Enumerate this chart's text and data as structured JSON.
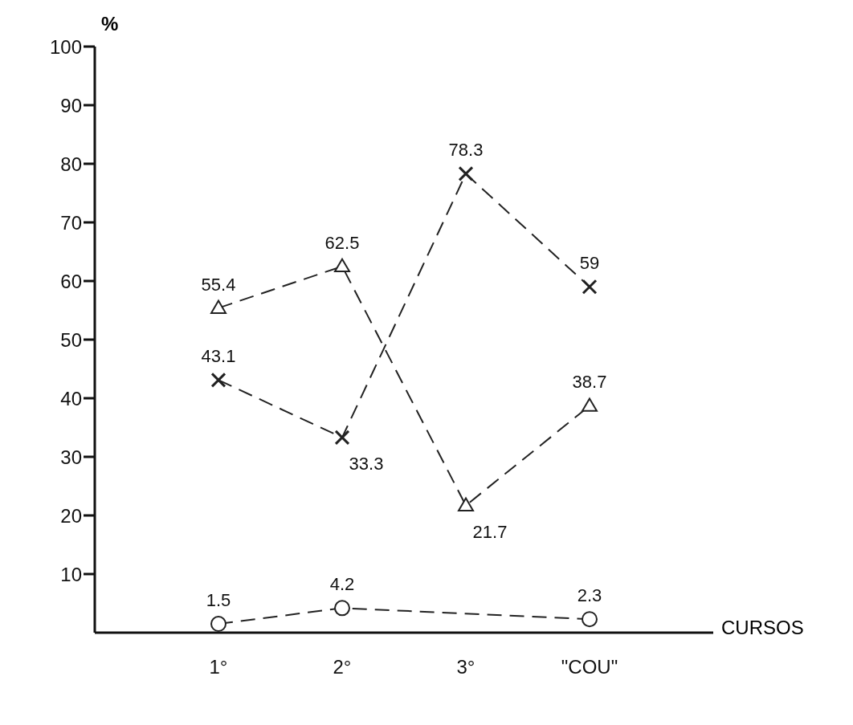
{
  "chart_data": {
    "type": "line",
    "categories": [
      "1°",
      "2°",
      "3°",
      "\"COU\""
    ],
    "series": [
      {
        "color": "#222222",
        "marker": "triangle",
        "values": [
          55.4,
          62.5,
          21.7,
          38.7
        ]
      },
      {
        "color": "#222222",
        "marker": "cross",
        "values": [
          43.1,
          33.3,
          78.3,
          59
        ]
      },
      {
        "color": "#222222",
        "marker": "circle",
        "values": [
          1.5,
          4.2,
          null,
          2.3
        ]
      }
    ],
    "ylabel": "%",
    "xlabel": "CURSOS",
    "ylim": [
      0,
      100
    ],
    "yticks": [
      10,
      20,
      30,
      40,
      50,
      60,
      70,
      80,
      90,
      100
    ],
    "line_style": "dashed",
    "data_labels": true,
    "grid": false,
    "legend": false
  }
}
